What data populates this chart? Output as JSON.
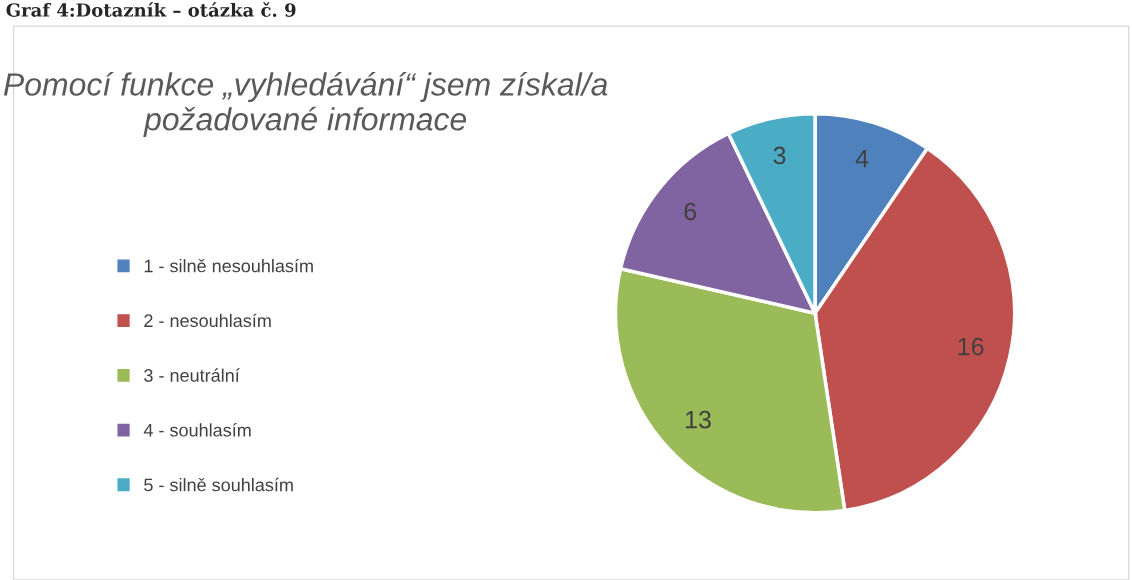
{
  "chart_data": {
    "type": "pie",
    "title": "Pomocí funkce „vyhledávání“ jsem získal/a požadované informace",
    "annotations": [
      "Graf 4:Dotazník – otázka č. 9"
    ],
    "categories": [
      "1 - silně nesouhlasím",
      "2 - nesouhlasím",
      "3 - neutrální",
      "4 - souhlasím",
      "5 - silně souhlasím"
    ],
    "values": [
      4,
      16,
      13,
      6,
      3
    ],
    "colors": [
      "#4f81bd",
      "#c0504d",
      "#9bbb59",
      "#8064a2",
      "#4bacc6"
    ],
    "data_labels": true,
    "legend": "left"
  }
}
